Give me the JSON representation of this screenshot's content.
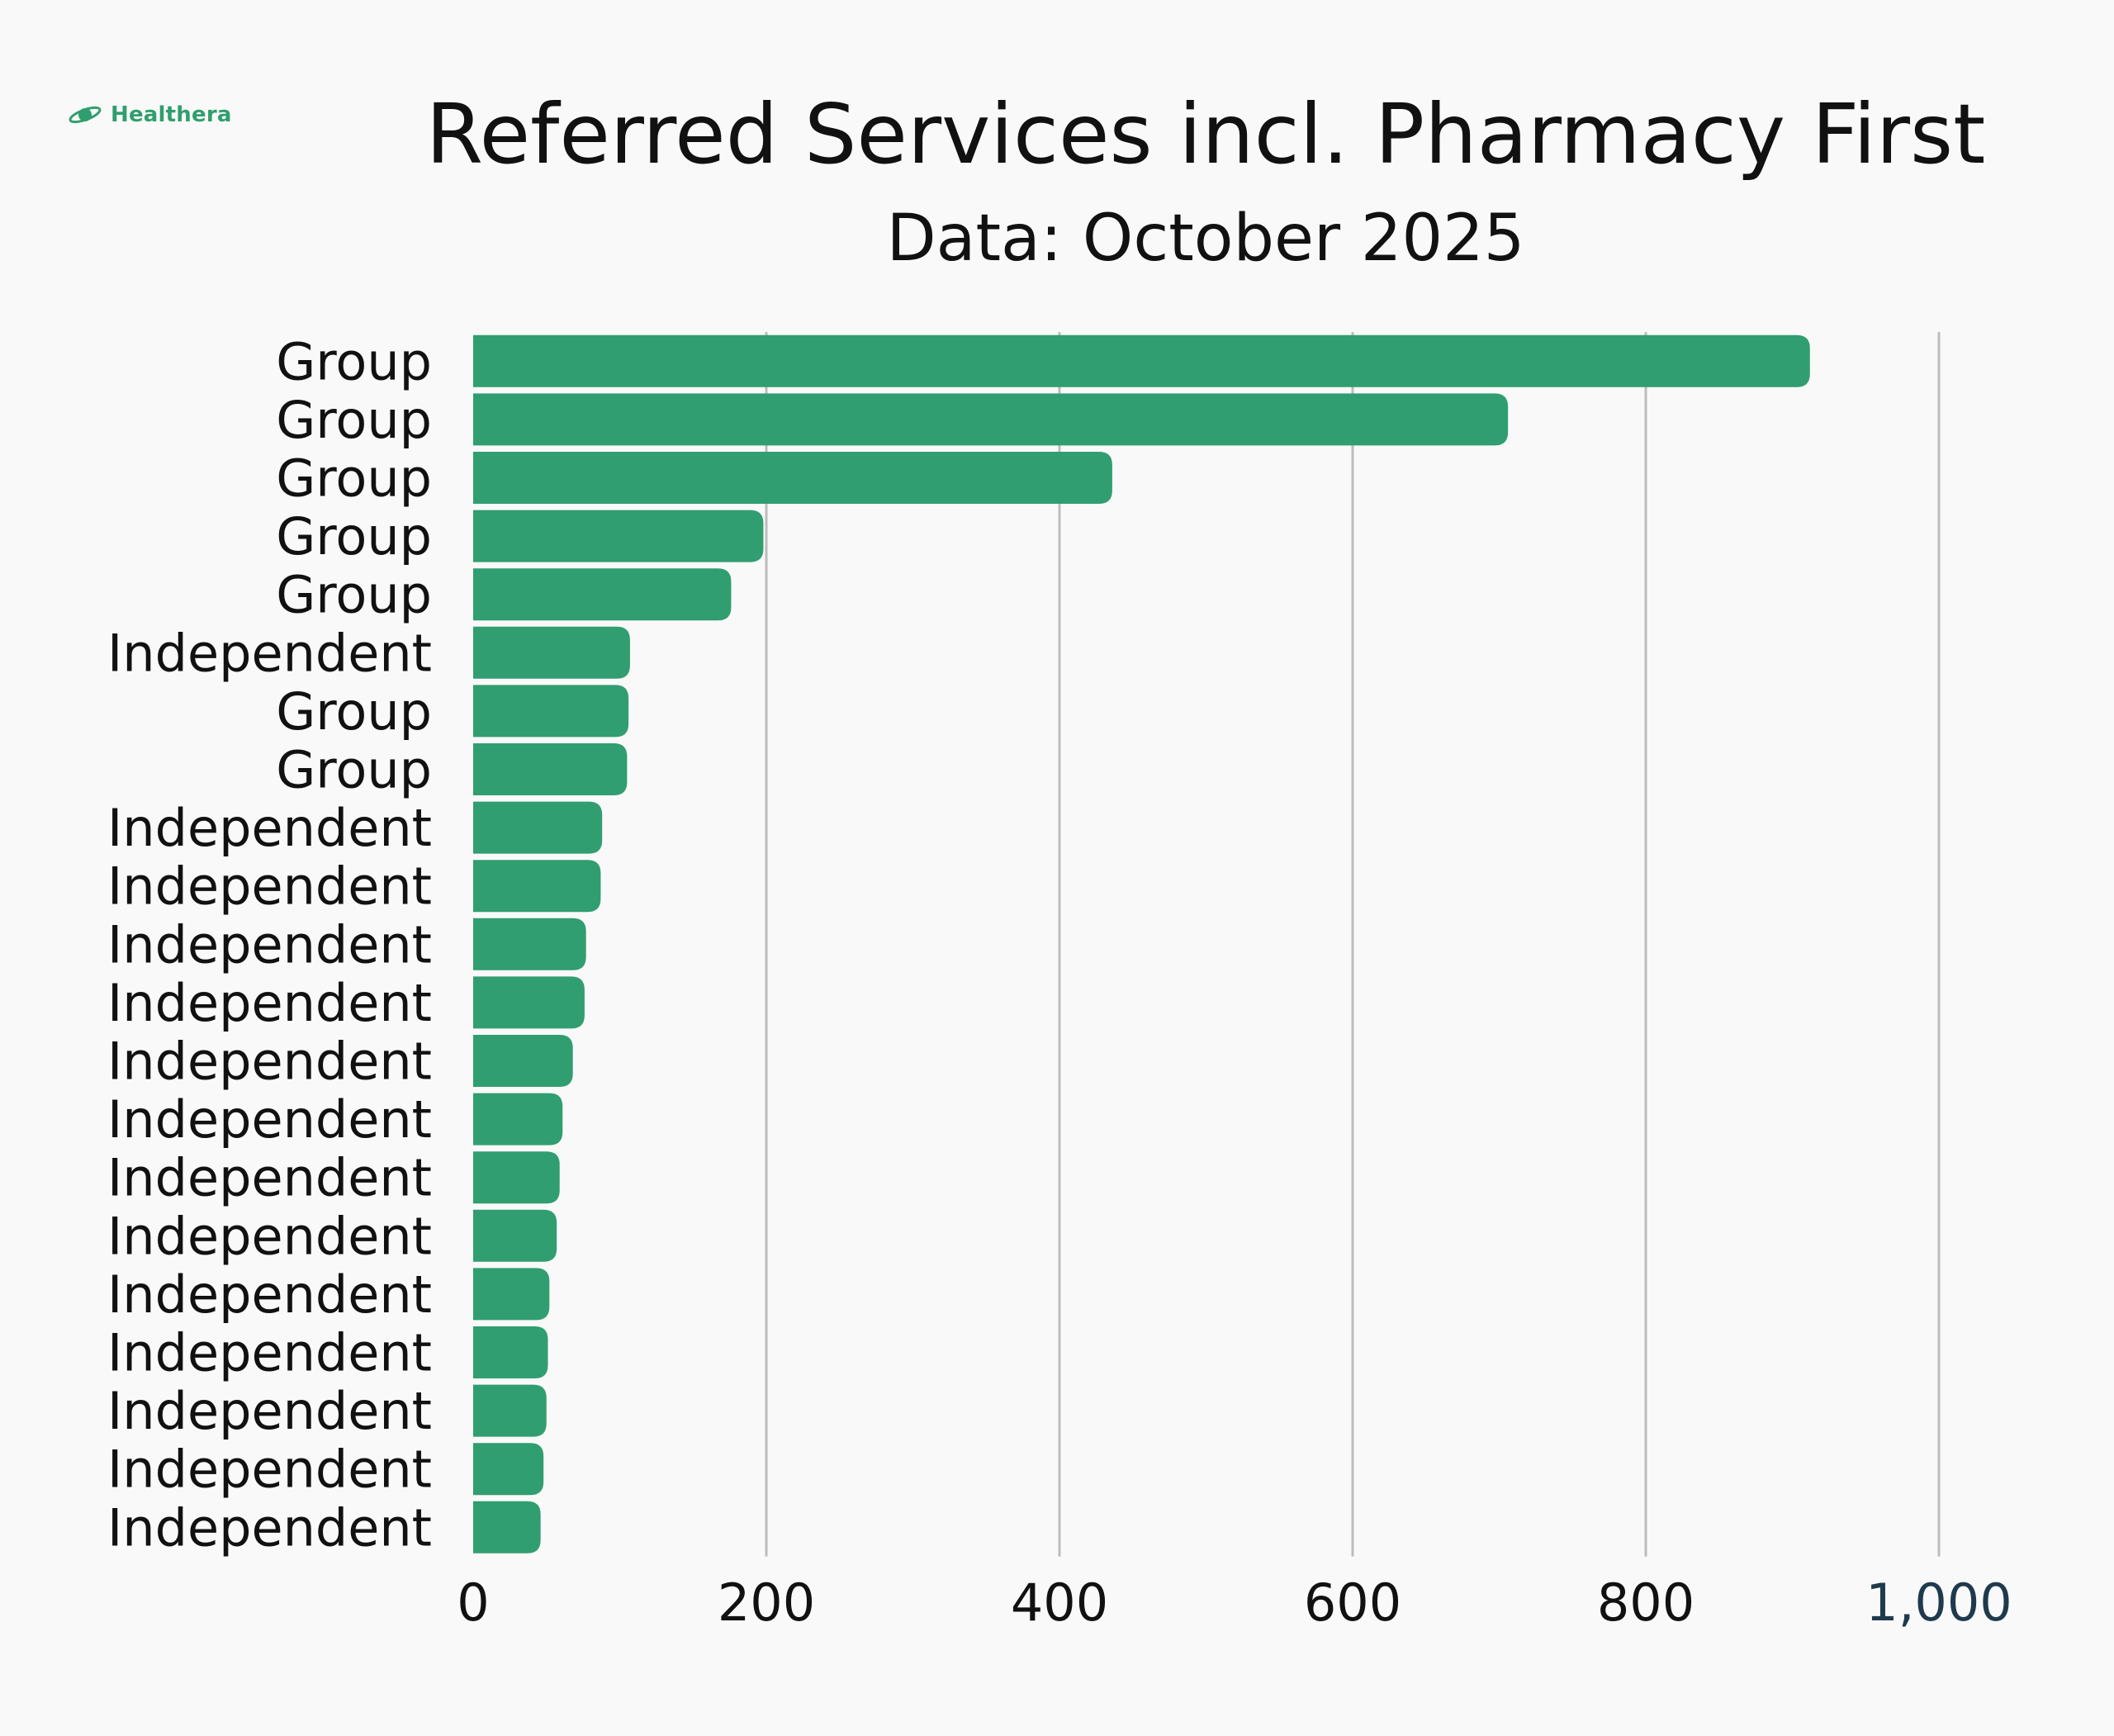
{
  "brand": {
    "name": "Healthera",
    "icon": "planet-logo-icon",
    "color": "#2f9e6e"
  },
  "chart_data": {
    "type": "bar",
    "orientation": "horizontal",
    "title": "Referred Services incl. Pharmacy First",
    "subtitle": "Data: October 2025",
    "xlabel": "",
    "ylabel": "",
    "categories": [
      "Group",
      "Group",
      "Group",
      "Group",
      "Group",
      "Independent",
      "Group",
      "Group",
      "Independent",
      "Independent",
      "Independent",
      "Independent",
      "Independent",
      "Independent",
      "Independent",
      "Independent",
      "Independent",
      "Independent",
      "Independent",
      "Independent",
      "Independent"
    ],
    "values": [
      912,
      706,
      436,
      198,
      176,
      107,
      106,
      105,
      88,
      87,
      77,
      76,
      68,
      61,
      59,
      57,
      52,
      51,
      50,
      48,
      46
    ],
    "xlim": [
      0,
      1000
    ],
    "ticks": [
      0,
      200,
      400,
      600,
      800,
      1000
    ],
    "tick_labels": [
      "0",
      "200",
      "400",
      "600",
      "800",
      "1,000"
    ],
    "grid": true,
    "bar_color": "#309e70",
    "grid_color": "#bdbdbd",
    "background": "#f9f9f9"
  }
}
